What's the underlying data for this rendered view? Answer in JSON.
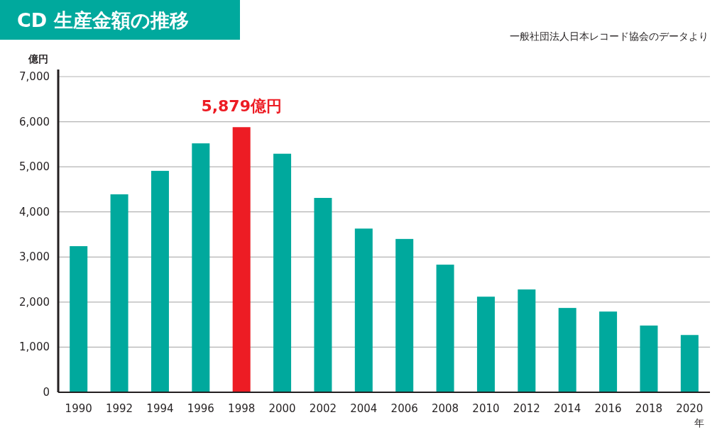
{
  "chart_data": {
    "type": "bar",
    "title": "CD 生産金額の推移",
    "ylabel": "億円",
    "xlabel": "年",
    "categories": [
      "1990",
      "1992",
      "1994",
      "1996",
      "1998",
      "2000",
      "2002",
      "2004",
      "2006",
      "2008",
      "2010",
      "2012",
      "2014",
      "2016",
      "2018",
      "2020"
    ],
    "values": [
      3240,
      4390,
      4910,
      5520,
      5879,
      5290,
      4310,
      3630,
      3400,
      2830,
      2120,
      2280,
      1870,
      1790,
      1480,
      1270
    ],
    "colors": [
      "#00a99d",
      "#00a99d",
      "#00a99d",
      "#00a99d",
      "#ed1c24",
      "#00a99d",
      "#00a99d",
      "#00a99d",
      "#00a99d",
      "#00a99d",
      "#00a99d",
      "#00a99d",
      "#00a99d",
      "#00a99d",
      "#00a99d",
      "#00a99d"
    ],
    "ylim": [
      0,
      7000
    ],
    "yticks": [
      0,
      {
        "value": 1000,
        "label": "1,000"
      },
      {
        "value": 2000,
        "label": "2,000"
      },
      {
        "value": 3000,
        "label": "3,000"
      },
      {
        "value": 4000,
        "label": "4,000"
      },
      {
        "value": 5000,
        "label": "5,000"
      },
      {
        "value": 6000,
        "label": "6,000"
      },
      {
        "value": 7000,
        "label": "7,000"
      }
    ],
    "grid": "y",
    "annotations": [
      "一般社団法人日本レコード協会のデータより",
      {
        "text": "5,879億円",
        "x": "1998",
        "y": 5879
      }
    ]
  }
}
